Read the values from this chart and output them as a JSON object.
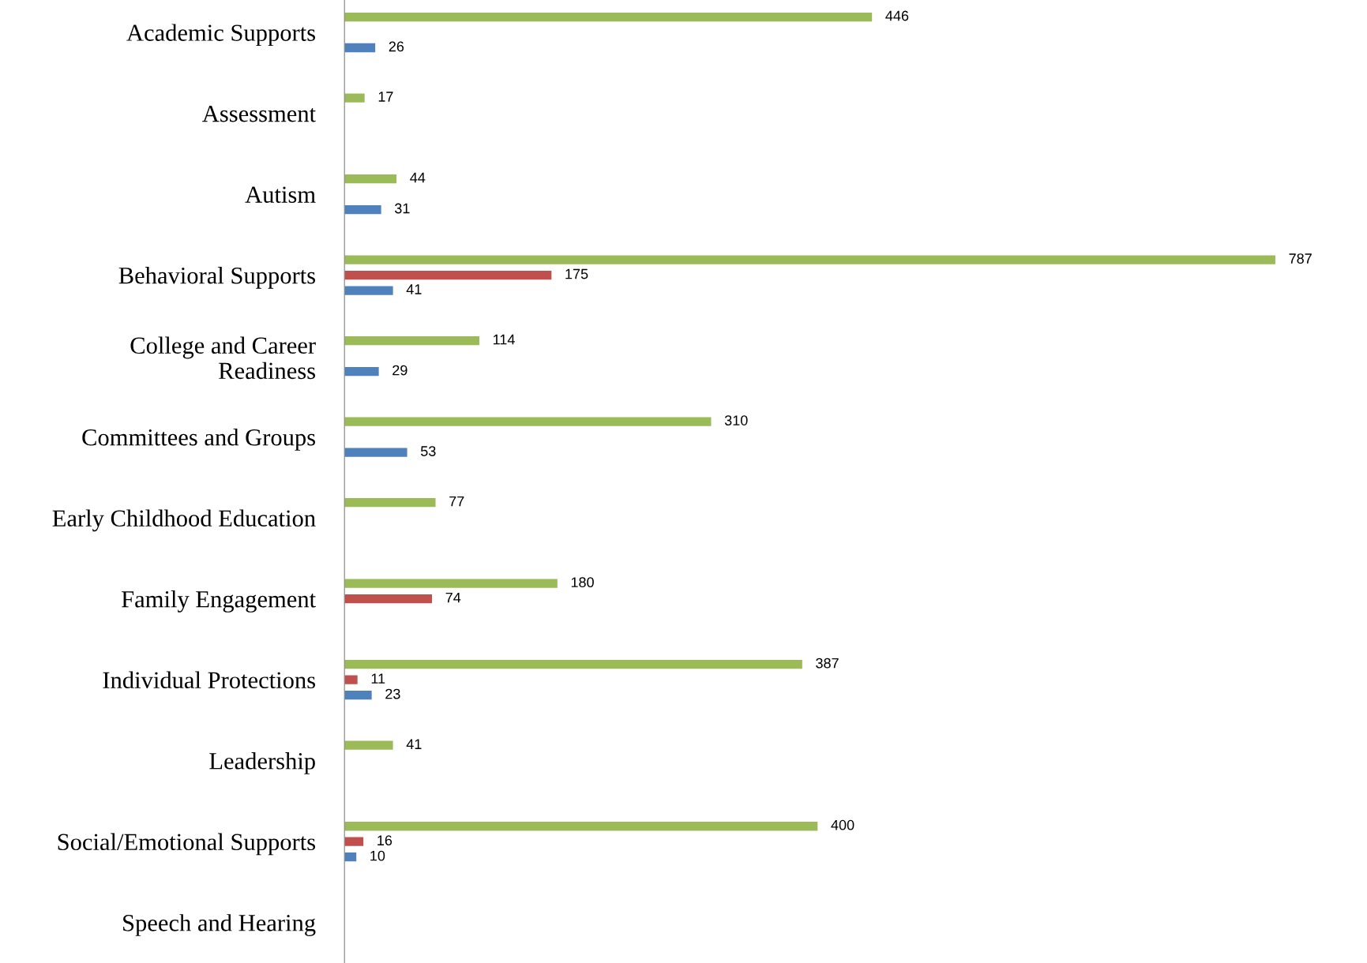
{
  "chart_data": {
    "type": "bar",
    "orientation": "horizontal",
    "data_labels": true,
    "categories": [
      "Academic Supports",
      "Assessment",
      "Autism",
      "Behavioral Supports",
      "College and Career\nReadiness",
      "Committees and Groups",
      "Early Childhood Education",
      "Family Engagement",
      "Individual Protections",
      "Leadership",
      "Social/Emotional Supports",
      "Speech and Hearing"
    ],
    "series": [
      {
        "color": "#9bbb59",
        "values": [
          446,
          17,
          44,
          787,
          114,
          310,
          77,
          180,
          387,
          41,
          400,
          null
        ]
      },
      {
        "color": "#c0504d",
        "values": [
          null,
          null,
          null,
          175,
          null,
          null,
          null,
          74,
          11,
          null,
          16,
          null
        ]
      },
      {
        "color": "#4f81bd",
        "values": [
          26,
          null,
          31,
          41,
          29,
          53,
          null,
          null,
          23,
          null,
          10,
          null
        ]
      }
    ]
  }
}
